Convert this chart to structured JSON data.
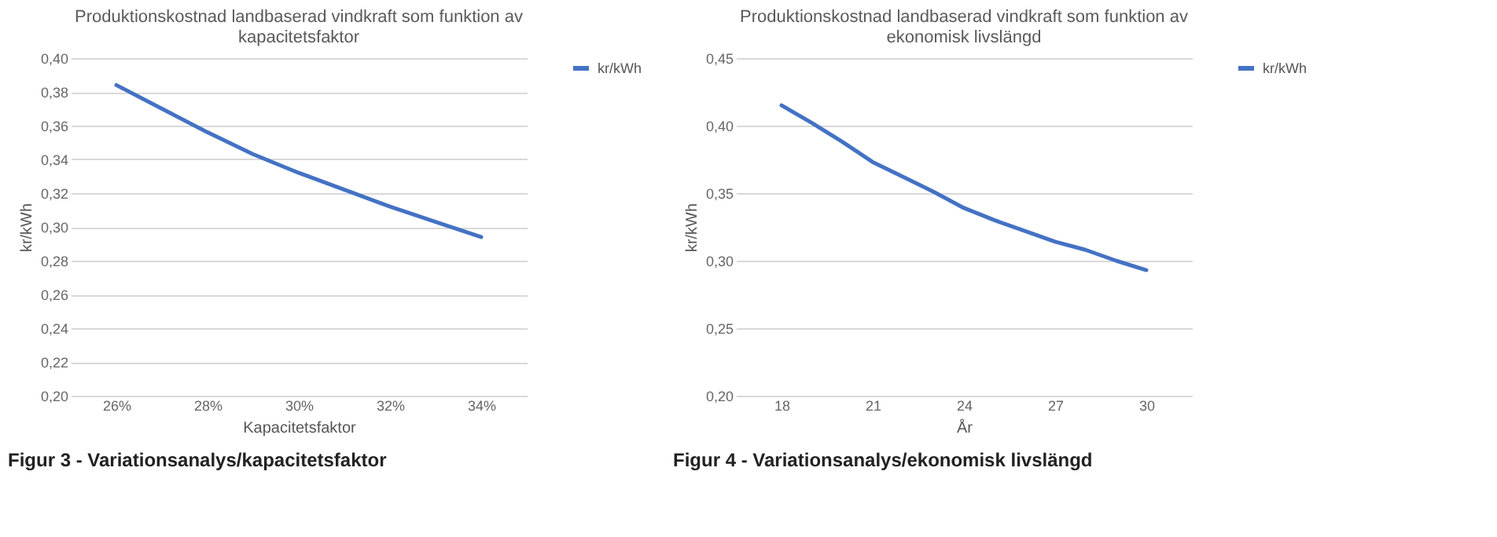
{
  "chart_data": [
    {
      "type": "line",
      "title": [
        "Produktionskostnad landbaserad vindkraft som funktion av",
        "kapacitetsfaktor"
      ],
      "xlabel": "Kapacitetsfaktor",
      "ylabel": "kr/kWh",
      "x": [
        26,
        27,
        28,
        29,
        30,
        31,
        32,
        33,
        34
      ],
      "series": [
        {
          "name": "kr/kWh",
          "color": "#4472c4",
          "values": [
            0.384,
            0.37,
            0.356,
            0.343,
            0.332,
            0.322,
            0.312,
            0.303,
            0.294
          ]
        }
      ],
      "xlim": [
        25,
        35
      ],
      "xticks": [
        {
          "value": 26,
          "label": "26%"
        },
        {
          "value": 28,
          "label": "28%"
        },
        {
          "value": 30,
          "label": "30%"
        },
        {
          "value": 32,
          "label": "32%"
        },
        {
          "value": 34,
          "label": "34%"
        }
      ],
      "ylim": [
        0.2,
        0.4
      ],
      "yticks": [
        {
          "value": 0.2,
          "label": "0,20"
        },
        {
          "value": 0.22,
          "label": "0,22"
        },
        {
          "value": 0.24,
          "label": "0,24"
        },
        {
          "value": 0.26,
          "label": "0,26"
        },
        {
          "value": 0.28,
          "label": "0,28"
        },
        {
          "value": 0.3,
          "label": "0,30"
        },
        {
          "value": 0.32,
          "label": "0,32"
        },
        {
          "value": 0.34,
          "label": "0,34"
        },
        {
          "value": 0.36,
          "label": "0,36"
        },
        {
          "value": 0.38,
          "label": "0,38"
        },
        {
          "value": 0.4,
          "label": "0,40"
        }
      ],
      "grid": "y",
      "legend": "right",
      "annotations": [
        "Figur 3 - Variationsanalys/kapacitetsfaktor"
      ]
    },
    {
      "type": "line",
      "title": [
        "Produktionskostnad landbaserad vindkraft som funktion av",
        "ekonomisk livslängd"
      ],
      "xlabel": "År",
      "ylabel": "kr/kWh",
      "x": [
        18,
        19,
        20,
        21,
        22,
        23,
        24,
        25,
        26,
        27,
        28,
        29,
        30
      ],
      "series": [
        {
          "name": "kr/kWh",
          "color": "#4472c4",
          "values": [
            0.415,
            0.402,
            0.388,
            0.373,
            0.362,
            0.351,
            0.339,
            0.33,
            0.322,
            0.314,
            0.308,
            0.3,
            0.293
          ]
        }
      ],
      "xlim": [
        16.5,
        31.5
      ],
      "xticks": [
        18,
        21,
        24,
        27,
        30
      ],
      "ylim": [
        0.2,
        0.45
      ],
      "yticks": [
        {
          "value": 0.2,
          "label": "0,20"
        },
        {
          "value": 0.25,
          "label": "0,25"
        },
        {
          "value": 0.3,
          "label": "0,30"
        },
        {
          "value": 0.35,
          "label": "0,35"
        },
        {
          "value": 0.4,
          "label": "0,40"
        },
        {
          "value": 0.45,
          "label": "0,45"
        }
      ],
      "grid": "y",
      "legend": "right",
      "annotations": [
        "Figur 4 - Variationsanalys/ekonomisk livslängd"
      ]
    }
  ]
}
